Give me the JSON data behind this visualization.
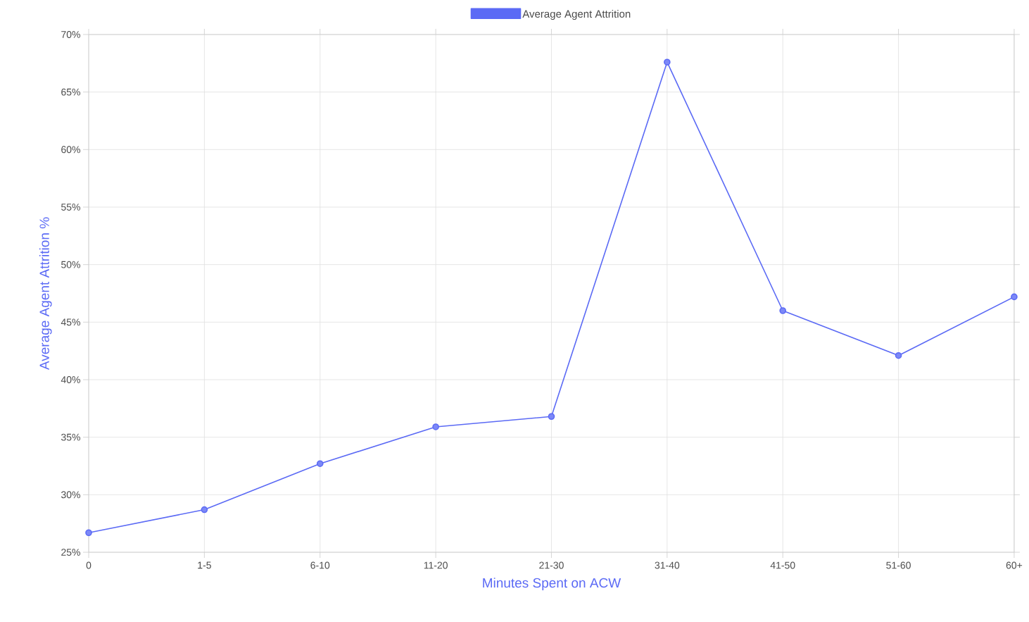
{
  "chart_data": {
    "type": "line",
    "xlabel": "Minutes Spent on ACW",
    "ylabel": "Average Agent Attrition %",
    "categories": [
      "0",
      "1-5",
      "6-10",
      "11-20",
      "21-30",
      "31-40",
      "41-50",
      "51-60",
      "60+"
    ],
    "series": [
      {
        "name": "Average Agent Attrition",
        "color": "#5b6af5",
        "values": [
          26.7,
          28.7,
          32.7,
          35.9,
          36.8,
          67.6,
          46.0,
          42.1,
          47.2
        ]
      }
    ],
    "ylim": [
      25,
      70
    ],
    "yticks": [
      {
        "value": 25,
        "label": "25%"
      },
      {
        "value": 30,
        "label": "30%"
      },
      {
        "value": 35,
        "label": "35%"
      },
      {
        "value": 40,
        "label": "40%"
      },
      {
        "value": 45,
        "label": "45%"
      },
      {
        "value": 50,
        "label": "50%"
      },
      {
        "value": 55,
        "label": "55%"
      },
      {
        "value": 60,
        "label": "60%"
      },
      {
        "value": 65,
        "label": "65%"
      },
      {
        "value": 70,
        "label": "70%"
      }
    ],
    "grid": true,
    "legend": "top",
    "marker": "circle",
    "line_style": "solid"
  }
}
